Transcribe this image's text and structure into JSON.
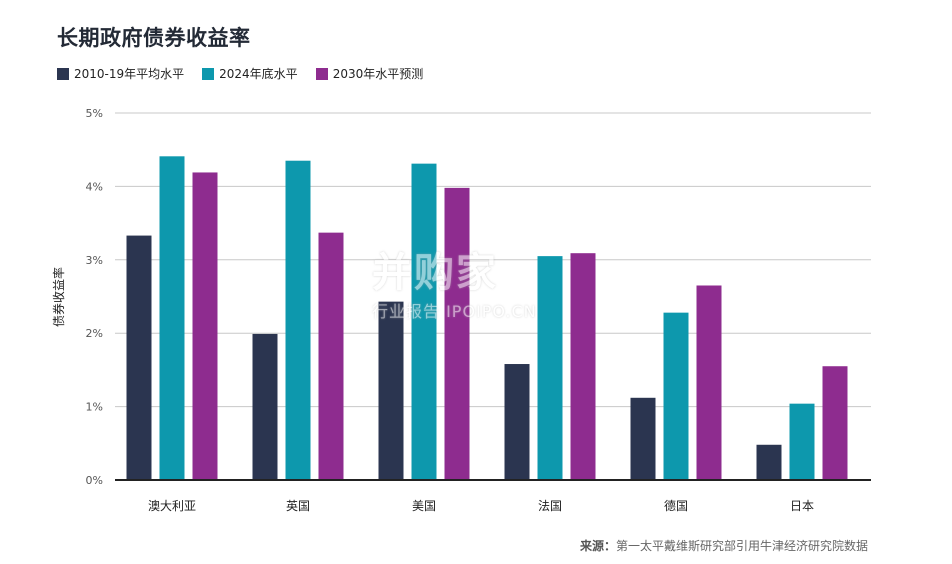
{
  "title": "长期政府债券收益率",
  "source_label": "来源：",
  "source_text": "第一太平戴维斯研究部引用牛津经济研究院数据",
  "watermark": {
    "main": "并购家",
    "sub": "行业报告 IPOIPO.CN"
  },
  "colors": {
    "series1": "#2b3550",
    "series2": "#0d98ad",
    "series3": "#8e2c8f",
    "axis": "#222222",
    "grid": "#c8c8c8"
  },
  "chart_data": {
    "type": "bar",
    "categories": [
      "澳大利亚",
      "英国",
      "美国",
      "法国",
      "德国",
      "日本"
    ],
    "series": [
      {
        "name": "2010-19年平均水平",
        "values": [
          3.33,
          1.99,
          2.43,
          1.58,
          1.12,
          0.48
        ]
      },
      {
        "name": "2024年底水平",
        "values": [
          4.41,
          4.35,
          4.31,
          3.05,
          2.28,
          1.04
        ]
      },
      {
        "name": "2030年水平预测",
        "values": [
          4.19,
          3.37,
          3.98,
          3.09,
          2.65,
          1.55
        ]
      }
    ],
    "ylabel": "债券收益率",
    "ylim": [
      0,
      5
    ],
    "yticks": [
      "0%",
      "1%",
      "2%",
      "3%",
      "4%",
      "5%"
    ],
    "grid": true,
    "legend": "top-left"
  }
}
